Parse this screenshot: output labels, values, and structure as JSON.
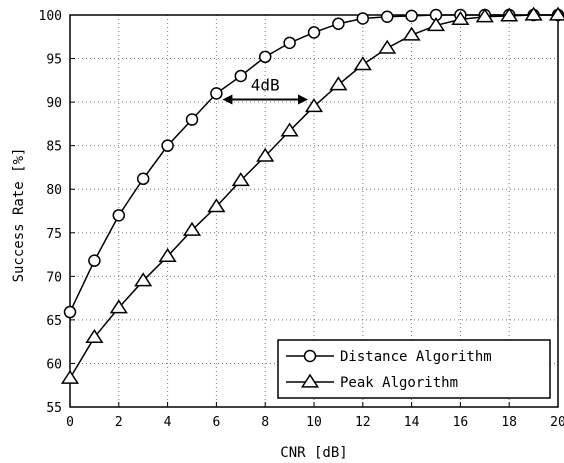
{
  "chart_data": {
    "type": "line",
    "xlabel": "CNR [dB]",
    "ylabel": "Success Rate [%]",
    "xlim": [
      0,
      20
    ],
    "ylim": [
      55,
      100
    ],
    "xticks": [
      0,
      2,
      4,
      6,
      8,
      10,
      12,
      14,
      16,
      18,
      20
    ],
    "yticks": [
      55,
      60,
      65,
      70,
      75,
      80,
      85,
      90,
      95,
      100
    ],
    "grid": true,
    "legend_position": "bottom-right",
    "annotation": {
      "text": "4dB",
      "from": [
        6,
        90.3
      ],
      "to": [
        10,
        90.3
      ]
    },
    "series": [
      {
        "name": "Distance Algorithm",
        "marker": "circle",
        "x": [
          0,
          1,
          2,
          3,
          4,
          5,
          6,
          7,
          8,
          9,
          10,
          11,
          12,
          13,
          14,
          15,
          16,
          17,
          18,
          19,
          20
        ],
        "y": [
          65.9,
          71.8,
          77.0,
          81.2,
          85.0,
          88.0,
          91.0,
          93.0,
          95.2,
          96.8,
          98.0,
          99.0,
          99.6,
          99.8,
          99.9,
          100,
          100,
          100,
          100,
          100,
          100
        ]
      },
      {
        "name": "Peak Algorithm",
        "marker": "triangle",
        "x": [
          0,
          1,
          2,
          3,
          4,
          5,
          6,
          7,
          8,
          9,
          10,
          11,
          12,
          13,
          14,
          15,
          16,
          17,
          18,
          19,
          20
        ],
        "y": [
          58.3,
          63.0,
          66.4,
          69.5,
          72.3,
          75.3,
          78.0,
          81.0,
          83.8,
          86.7,
          89.5,
          92.0,
          94.3,
          96.2,
          97.7,
          98.8,
          99.5,
          99.8,
          99.9,
          100,
          100
        ]
      }
    ]
  }
}
